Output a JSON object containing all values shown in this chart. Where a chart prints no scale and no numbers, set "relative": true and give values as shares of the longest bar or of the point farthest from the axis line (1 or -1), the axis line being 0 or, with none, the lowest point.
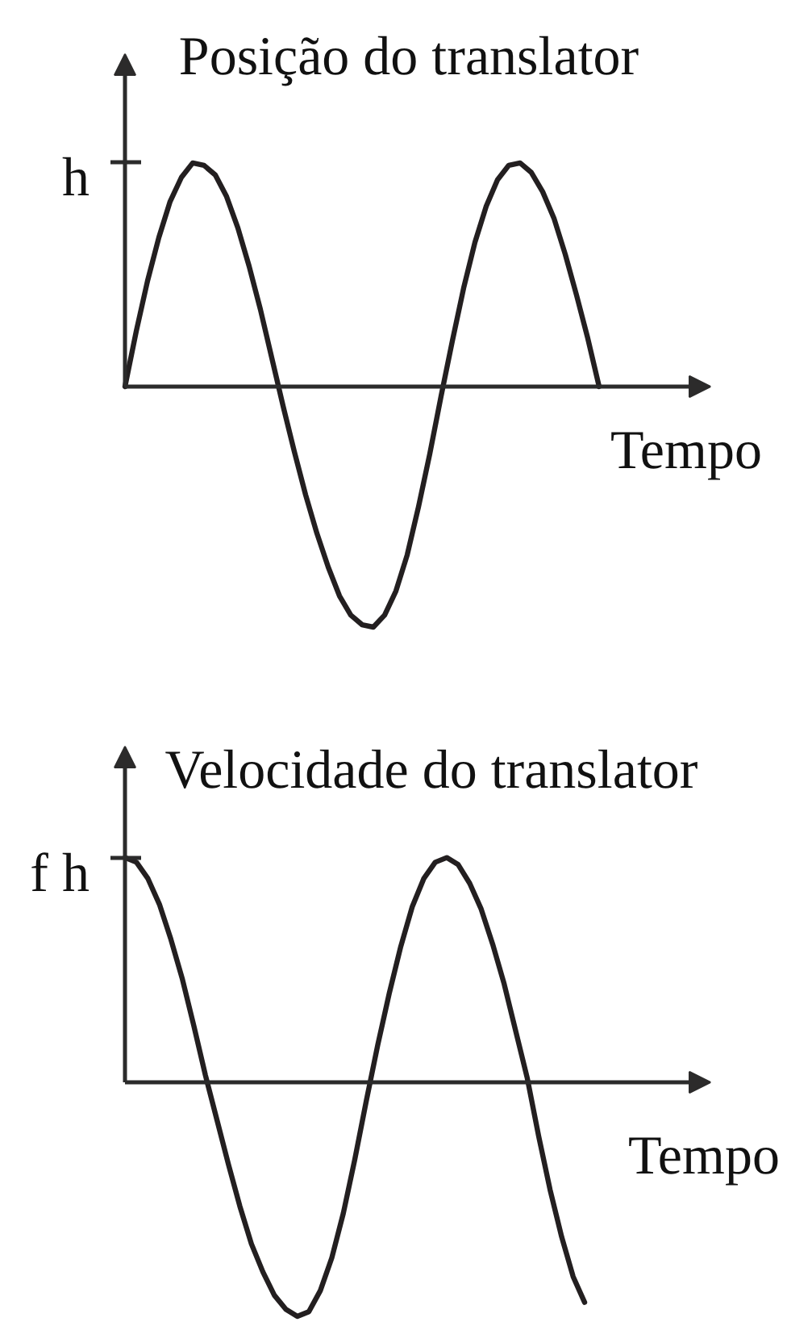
{
  "chart_data": [
    {
      "type": "line",
      "title": "Posição do translator",
      "xlabel": "Tempo",
      "relative": true,
      "tick_labels": false,
      "annotations": [
        "h"
      ],
      "categories": [
        null,
        null,
        null,
        null,
        null,
        null,
        null,
        null,
        null,
        null,
        null,
        null,
        null,
        null,
        null,
        null,
        null,
        null,
        null,
        null,
        null,
        null,
        null,
        null,
        null,
        null,
        null,
        null,
        null,
        null,
        null,
        null,
        null,
        null,
        null,
        null,
        null,
        null,
        null,
        null,
        null,
        null,
        null
      ],
      "series": [
        {
          "color": "#231f20",
          "values": [
            0,
            0.23,
            0.44,
            0.62,
            0.77,
            0.87,
            0.93,
            0.92,
            0.88,
            0.79,
            0.66,
            0.5,
            0.32,
            0.12,
            -0.08,
            -0.27,
            -0.45,
            -0.61,
            -0.75,
            -0.87,
            -0.95,
            -0.99,
            -1,
            -0.95,
            -0.85,
            -0.7,
            -0.5,
            -0.28,
            -0.04,
            0.19,
            0.41,
            0.6,
            0.75,
            0.86,
            0.92,
            0.93,
            0.89,
            0.81,
            0.7,
            0.55,
            0.38,
            0.2,
            0
          ]
        }
      ]
    },
    {
      "type": "line",
      "title": "Velocidade do translator",
      "xlabel": "Tempo",
      "relative": true,
      "tick_labels": false,
      "annotations": [
        "f h"
      ],
      "categories": [
        null,
        null,
        null,
        null,
        null,
        null,
        null,
        null,
        null,
        null,
        null,
        null,
        null,
        null,
        null,
        null,
        null,
        null,
        null,
        null,
        null,
        null,
        null,
        null,
        null,
        null,
        null,
        null,
        null,
        null,
        null,
        null,
        null,
        null,
        null,
        null,
        null,
        null,
        null,
        null,
        null
      ],
      "series": [
        {
          "color": "#231f20",
          "values": [
            0.96,
            0.94,
            0.87,
            0.76,
            0.61,
            0.44,
            0.24,
            0.03,
            -0.16,
            -0.35,
            -0.53,
            -0.69,
            -0.81,
            -0.91,
            -0.97,
            -1,
            -0.98,
            -0.89,
            -0.75,
            -0.56,
            -0.33,
            -0.08,
            0.16,
            0.38,
            0.58,
            0.75,
            0.87,
            0.94,
            0.96,
            0.93,
            0.85,
            0.74,
            0.59,
            0.42,
            0.22,
            0.02,
            -0.23,
            -0.46,
            -0.66,
            -0.83,
            -0.94
          ]
        }
      ]
    }
  ]
}
